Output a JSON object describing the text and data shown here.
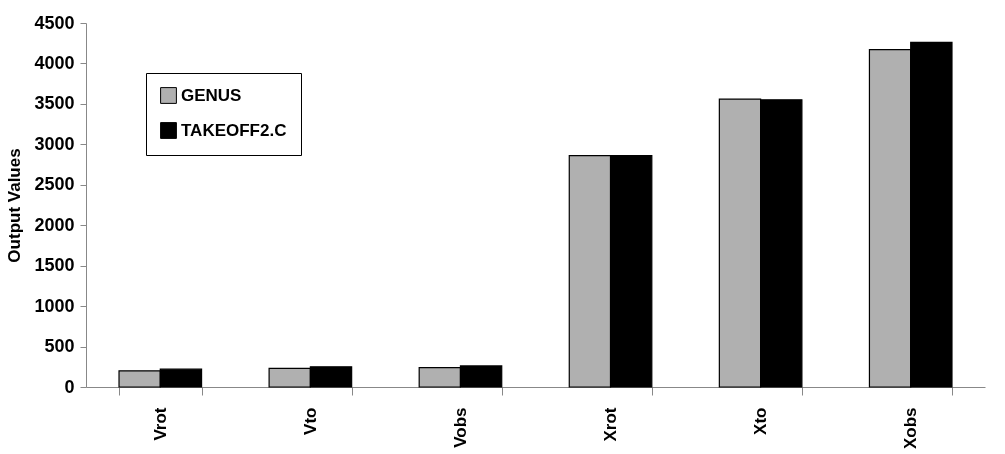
{
  "chart_data": {
    "type": "bar",
    "ylabel": "Output Values",
    "categories": [
      "Vrot",
      "Vto",
      "Vobs",
      "Xrot",
      "Xto",
      "Xobs"
    ],
    "series": [
      {
        "name": "GENUS",
        "color": "#b0b0b0",
        "values": [
          200,
          230,
          240,
          2860,
          3560,
          4170
        ]
      },
      {
        "name": "TAKEOFF2.C",
        "color": "#000000",
        "values": [
          220,
          250,
          260,
          2860,
          3550,
          4260
        ]
      }
    ],
    "ylim": [
      0,
      4500
    ],
    "yticks": [
      0,
      500,
      1000,
      1500,
      2000,
      2500,
      3000,
      3500,
      4000,
      4500
    ],
    "grid": false,
    "legend": "top left"
  }
}
